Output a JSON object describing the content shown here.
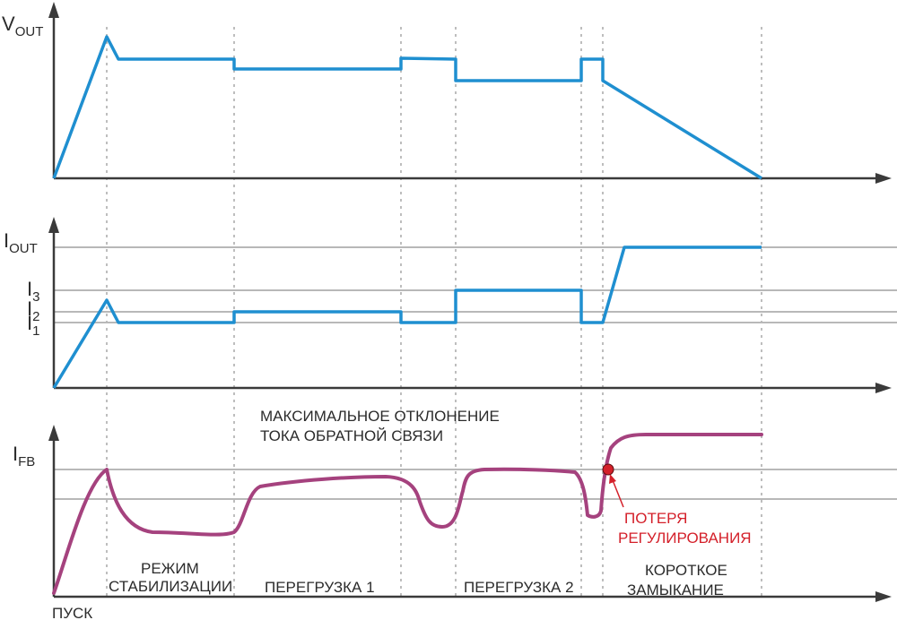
{
  "axes": {
    "vout": {
      "main": "V",
      "sub": "OUT"
    },
    "iout": {
      "main": "I",
      "sub": "OUT"
    },
    "i3": {
      "main": "I",
      "sub": "3"
    },
    "i2": {
      "main": "I",
      "sub": "2"
    },
    "i1": {
      "main": "I",
      "sub": "1"
    },
    "ifb": {
      "main": "I",
      "sub": "FB"
    }
  },
  "annotation_top": [
    "МАКСИМАЛЬНОЕ ОТКЛОНЕНИЕ",
    "ТОКА ОБРАТНОЙ СВЯЗИ"
  ],
  "loss_label": [
    "ПОТЕРЯ",
    "РЕГУЛИРОВАНИЯ"
  ],
  "phases": {
    "start": "ПУСК",
    "regulation": [
      "РЕЖИМ",
      "СТАБИЛИЗАЦИИ"
    ],
    "overload1": "ПЕРЕГРУЗКА 1",
    "overload2": "ПЕРЕГРУЗКА 2",
    "short_circuit": [
      "КОРОТКОЕ",
      "ЗАМЫКАНИЕ"
    ]
  },
  "colors": {
    "voltage_current": "#1f8fd0",
    "feedback_current": "#a5427e",
    "loss_marker": "#d4202a",
    "axis": "#3a3a3a"
  }
}
